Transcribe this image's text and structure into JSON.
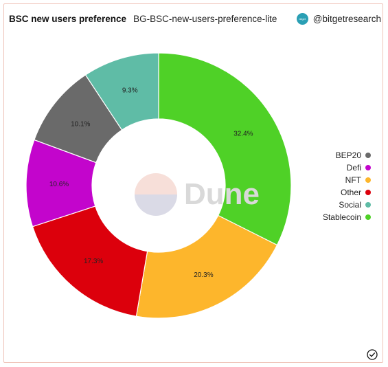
{
  "header": {
    "title": "BSC new users preference",
    "subtitle": "BG-BSC-new-users-preference-lite",
    "author": "@bitgetresearch",
    "avatar_text": "bitget",
    "avatar_color": "#2a9fb4"
  },
  "watermark": {
    "text": "Dune"
  },
  "chart_data": {
    "type": "pie",
    "donut": true,
    "title": "BSC new users preference",
    "legend_position": "right",
    "slices": [
      {
        "name": "Stablecoin",
        "value": 32.4,
        "label": "32.4%",
        "color": "#4fd127"
      },
      {
        "name": "NFT",
        "value": 20.3,
        "label": "20.3%",
        "color": "#fdb62c"
      },
      {
        "name": "Other",
        "value": 17.3,
        "label": "17.3%",
        "color": "#dc000c"
      },
      {
        "name": "Defi",
        "value": 10.6,
        "label": "10.6%",
        "color": "#c305cc"
      },
      {
        "name": "BEP20",
        "value": 10.1,
        "label": "10.1%",
        "color": "#6a6a6a"
      },
      {
        "name": "Social",
        "value": 9.3,
        "label": "9.3%",
        "color": "#5fbca6"
      }
    ]
  },
  "legend": [
    {
      "label": "BEP20",
      "color": "#6a6a6a"
    },
    {
      "label": "Defi",
      "color": "#c305cc"
    },
    {
      "label": "NFT",
      "color": "#fdb62c"
    },
    {
      "label": "Other",
      "color": "#dc000c"
    },
    {
      "label": "Social",
      "color": "#5fbca6"
    },
    {
      "label": "Stablecoin",
      "color": "#4fd127"
    }
  ]
}
